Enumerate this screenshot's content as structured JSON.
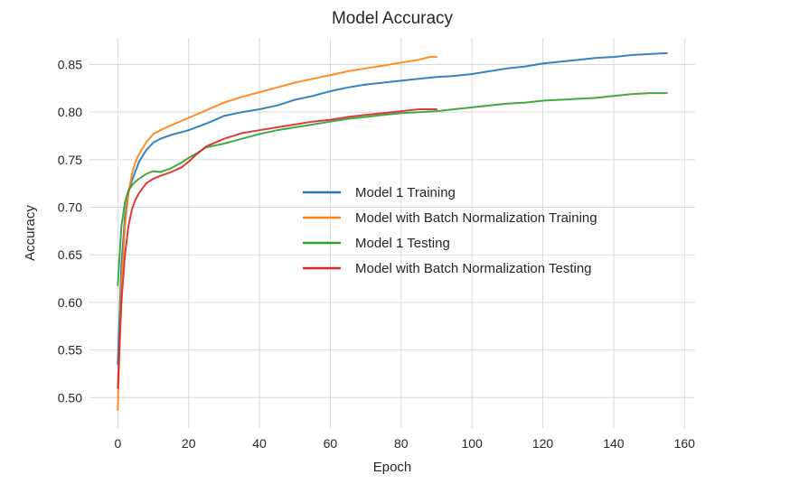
{
  "chart_data": {
    "type": "line",
    "title": "Model Accuracy",
    "xlabel": "Epoch",
    "ylabel": "Accuracy",
    "xlim": [
      -8,
      163
    ],
    "ylim": [
      0.468,
      0.878
    ],
    "xticks": [
      0,
      20,
      40,
      60,
      80,
      100,
      120,
      140,
      160
    ],
    "yticks": [
      0.5,
      0.55,
      0.6,
      0.65,
      0.7,
      0.75,
      0.8,
      0.85
    ],
    "xtick_labels": [
      "0",
      "20",
      "40",
      "60",
      "80",
      "100",
      "120",
      "140",
      "160"
    ],
    "ytick_labels": [
      "0.50",
      "0.55",
      "0.60",
      "0.65",
      "0.70",
      "0.75",
      "0.80",
      "0.85"
    ],
    "grid": true,
    "legend_position": "center-right",
    "series": [
      {
        "name": "Model 1 Training",
        "color": "#1f77b4",
        "x": [
          0,
          1,
          2,
          3,
          4,
          5,
          6,
          8,
          10,
          12,
          15,
          20,
          25,
          30,
          35,
          40,
          45,
          50,
          55,
          60,
          65,
          70,
          75,
          80,
          85,
          90,
          95,
          100,
          105,
          110,
          115,
          120,
          125,
          130,
          135,
          140,
          145,
          150,
          155
        ],
        "y": [
          0.535,
          0.64,
          0.69,
          0.715,
          0.728,
          0.738,
          0.748,
          0.76,
          0.768,
          0.772,
          0.776,
          0.781,
          0.788,
          0.796,
          0.8,
          0.803,
          0.807,
          0.813,
          0.817,
          0.822,
          0.826,
          0.829,
          0.831,
          0.833,
          0.835,
          0.837,
          0.838,
          0.84,
          0.843,
          0.846,
          0.848,
          0.851,
          0.853,
          0.855,
          0.857,
          0.858,
          0.86,
          0.861,
          0.862
        ]
      },
      {
        "name": "Model with Batch Normalization Training",
        "color": "#ff7f0e",
        "x": [
          0,
          1,
          2,
          3,
          4,
          5,
          6,
          8,
          10,
          12,
          15,
          20,
          25,
          30,
          35,
          40,
          45,
          50,
          55,
          60,
          65,
          70,
          75,
          80,
          85,
          88,
          90
        ],
        "y": [
          0.487,
          0.62,
          0.68,
          0.715,
          0.735,
          0.748,
          0.756,
          0.768,
          0.777,
          0.781,
          0.786,
          0.794,
          0.802,
          0.81,
          0.816,
          0.821,
          0.826,
          0.831,
          0.835,
          0.839,
          0.843,
          0.846,
          0.849,
          0.852,
          0.855,
          0.858,
          0.858
        ]
      },
      {
        "name": "Model 1 Testing",
        "color": "#2ca02c",
        "x": [
          0,
          1,
          2,
          3,
          4,
          5,
          6,
          8,
          10,
          12,
          15,
          18,
          20,
          22,
          25,
          30,
          35,
          40,
          45,
          50,
          55,
          60,
          65,
          70,
          75,
          80,
          85,
          90,
          95,
          100,
          105,
          110,
          115,
          120,
          125,
          130,
          135,
          140,
          145,
          150,
          155
        ],
        "y": [
          0.618,
          0.68,
          0.705,
          0.718,
          0.723,
          0.727,
          0.73,
          0.735,
          0.738,
          0.737,
          0.741,
          0.747,
          0.752,
          0.756,
          0.763,
          0.767,
          0.772,
          0.777,
          0.781,
          0.784,
          0.787,
          0.79,
          0.793,
          0.795,
          0.797,
          0.799,
          0.8,
          0.801,
          0.803,
          0.805,
          0.807,
          0.809,
          0.81,
          0.812,
          0.813,
          0.814,
          0.815,
          0.817,
          0.819,
          0.82,
          0.82
        ]
      },
      {
        "name": "Model with Batch Normalization Testing",
        "color": "#d62728",
        "x": [
          0,
          1,
          2,
          3,
          4,
          5,
          6,
          8,
          10,
          12,
          15,
          18,
          20,
          22,
          25,
          30,
          35,
          40,
          45,
          50,
          55,
          60,
          65,
          70,
          75,
          80,
          85,
          88,
          90
        ],
        "y": [
          0.51,
          0.6,
          0.65,
          0.68,
          0.698,
          0.708,
          0.715,
          0.725,
          0.73,
          0.733,
          0.737,
          0.742,
          0.748,
          0.755,
          0.764,
          0.772,
          0.778,
          0.781,
          0.784,
          0.787,
          0.79,
          0.792,
          0.795,
          0.797,
          0.799,
          0.801,
          0.803,
          0.803,
          0.803
        ]
      }
    ]
  }
}
